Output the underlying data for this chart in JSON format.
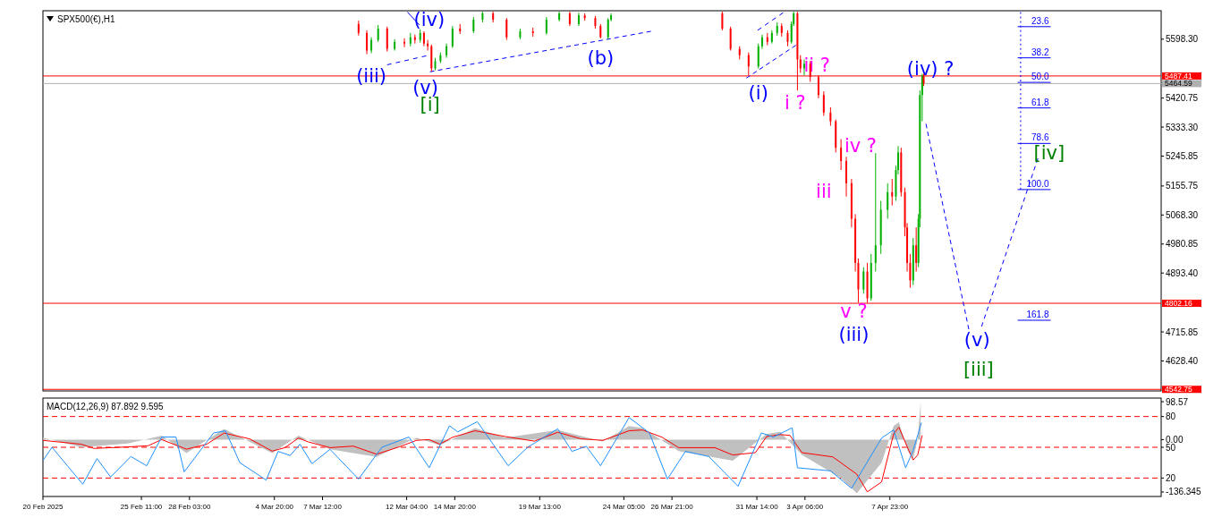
{
  "chart_data": [
    {
      "type": "candlestick",
      "title": "SPX500(€),H1",
      "tick_labels": "y",
      "xlim": [
        "2025-02-20T00:00",
        "2025-04-23T00:00"
      ],
      "ylim": [
        4538,
        5684
      ],
      "yticks": [
        {
          "value": 5598.3,
          "label": "5598.30"
        },
        {
          "value": 5420.75,
          "label": "5420.75"
        },
        {
          "value": 5333.3,
          "label": "5333.30"
        },
        {
          "value": 5245.85,
          "label": "5245.85"
        },
        {
          "value": 5155.75,
          "label": "5155.75"
        },
        {
          "value": 5068.3,
          "label": "5068.30"
        },
        {
          "value": 4980.85,
          "label": "4980.85"
        },
        {
          "value": 4893.4,
          "label": "4893.40"
        },
        {
          "value": 4715.85,
          "label": "4715.85"
        },
        {
          "value": 4628.4,
          "label": "4628.40"
        }
      ],
      "x": [
        "2025-03-09T12:00",
        "2025-03-09T23:00",
        "2025-03-10T05:00",
        "2025-03-10T14:00",
        "2025-03-11T02:00",
        "2025-03-11T12:00",
        "2025-03-12T01:00",
        "2025-03-12T09:00",
        "2025-03-12T15:00",
        "2025-03-12T22:00",
        "2025-03-13T03:00",
        "2025-03-13T08:00",
        "2025-03-13T13:00",
        "2025-03-13T18:00",
        "2025-03-14T01:00",
        "2025-03-14T09:00",
        "2025-03-14T17:00",
        "2025-03-15T03:00",
        "2025-03-15T21:00",
        "2025-03-16T09:00",
        "2025-03-16T23:00",
        "2025-03-17T17:00",
        "2025-03-18T11:00",
        "2025-03-19T04:00",
        "2025-03-19T22:00",
        "2025-03-20T15:00",
        "2025-03-21T05:00",
        "2025-03-21T17:00",
        "2025-03-22T01:00",
        "2025-03-22T15:00",
        "2025-03-22T22:00",
        "2025-03-23T08:00",
        "2025-03-23T12:00",
        "2025-03-29T16:00",
        "2025-03-30T03:00",
        "2025-03-30T15:00",
        "2025-03-31T03:00",
        "2025-03-31T16:00",
        "2025-03-31T21:00",
        "2025-04-01T04:00",
        "2025-04-01T10:00",
        "2025-04-01T17:00",
        "2025-04-01T23:00",
        "2025-04-02T07:00",
        "2025-04-02T12:00",
        "2025-04-02T15:00",
        "2025-04-02T20:00",
        "2025-04-03T00:00",
        "2025-04-03T05:00",
        "2025-04-03T13:00",
        "2025-04-04T00:00",
        "2025-04-04T07:00",
        "2025-04-04T16:00",
        "2025-04-04T23:00",
        "2025-04-05T06:00",
        "2025-04-05T13:00",
        "2025-04-05T20:00",
        "2025-04-06T01:00",
        "2025-04-06T05:00",
        "2025-04-06T12:00",
        "2025-04-06T17:00",
        "2025-04-06T22:00",
        "2025-04-07T04:00",
        "2025-04-07T11:00",
        "2025-04-07T20:00",
        "2025-04-08T02:00",
        "2025-04-08T07:00",
        "2025-04-08T10:00",
        "2025-04-08T14:00",
        "2025-04-08T19:00",
        "2025-04-08T22:00",
        "2025-04-09T02:00",
        "2025-04-09T06:00",
        "2025-04-09T10:00",
        "2025-04-09T13:00",
        "2025-04-09T15:00",
        "2025-04-09T18:00",
        "2025-04-09T20:00"
      ],
      "ohlc": [
        [
          5644,
          5654,
          5609,
          5617
        ],
        [
          5617,
          5625,
          5553,
          5564
        ],
        [
          5564,
          5604,
          5556,
          5596
        ],
        [
          5596,
          5641,
          5590,
          5630
        ],
        [
          5630,
          5636,
          5561,
          5569
        ],
        [
          5569,
          5598,
          5564,
          5590
        ],
        [
          5590,
          5601,
          5574,
          5585
        ],
        [
          5585,
          5617,
          5577,
          5604
        ],
        [
          5604,
          5612,
          5585,
          5596
        ],
        [
          5596,
          5628,
          5588,
          5617
        ],
        [
          5617,
          5622,
          5577,
          5585
        ],
        [
          5585,
          5596,
          5564,
          5577
        ],
        [
          5577,
          5582,
          5500,
          5510
        ],
        [
          5510,
          5542,
          5505,
          5532
        ],
        [
          5532,
          5558,
          5526,
          5550
        ],
        [
          5550,
          5585,
          5542,
          5577
        ],
        [
          5577,
          5638,
          5572,
          5630
        ],
        [
          5630,
          5644,
          5614,
          5622
        ],
        [
          5622,
          5665,
          5617,
          5657
        ],
        [
          5657,
          5681,
          5649,
          5676
        ],
        [
          5676,
          5681,
          5649,
          5657
        ],
        [
          5657,
          5662,
          5596,
          5604
        ],
        [
          5604,
          5630,
          5598,
          5622
        ],
        [
          5622,
          5633,
          5606,
          5617
        ],
        [
          5617,
          5665,
          5612,
          5657
        ],
        [
          5657,
          5681,
          5652,
          5676
        ],
        [
          5676,
          5681,
          5638,
          5644
        ],
        [
          5644,
          5678,
          5638,
          5670
        ],
        [
          5670,
          5676,
          5654,
          5662
        ],
        [
          5662,
          5668,
          5630,
          5638
        ],
        [
          5638,
          5644,
          5601,
          5604
        ],
        [
          5604,
          5662,
          5598,
          5657
        ],
        [
          5657,
          5676,
          5652,
          5670
        ],
        [
          5676,
          5681,
          5625,
          5630
        ],
        [
          5630,
          5636,
          5564,
          5569
        ],
        [
          5569,
          5577,
          5537,
          5550
        ],
        [
          5550,
          5558,
          5489,
          5516
        ],
        [
          5516,
          5585,
          5510,
          5577
        ],
        [
          5577,
          5612,
          5569,
          5604
        ],
        [
          5604,
          5617,
          5580,
          5590
        ],
        [
          5590,
          5625,
          5585,
          5617
        ],
        [
          5617,
          5649,
          5609,
          5638
        ],
        [
          5638,
          5646,
          5606,
          5617
        ],
        [
          5617,
          5625,
          5577,
          5590
        ],
        [
          5590,
          5652,
          5585,
          5644
        ],
        [
          5644,
          5681,
          5638,
          5676
        ],
        [
          5676,
          5681,
          5444,
          5537
        ],
        [
          5537,
          5550,
          5497,
          5510
        ],
        [
          5510,
          5537,
          5489,
          5524
        ],
        [
          5524,
          5532,
          5470,
          5484
        ],
        [
          5484,
          5489,
          5420,
          5430
        ],
        [
          5430,
          5441,
          5367,
          5377
        ],
        [
          5377,
          5393,
          5337,
          5351
        ],
        [
          5351,
          5356,
          5257,
          5271
        ],
        [
          5271,
          5297,
          5204,
          5231
        ],
        [
          5231,
          5244,
          5124,
          5164
        ],
        [
          5164,
          5177,
          5031,
          5057
        ],
        [
          5057,
          5071,
          4898,
          4924
        ],
        [
          4924,
          4937,
          4804,
          4844
        ],
        [
          4844,
          4911,
          4831,
          4898
        ],
        [
          4898,
          4924,
          4804,
          4817
        ],
        [
          4817,
          4951,
          4810,
          4924
        ],
        [
          4924,
          5255,
          4898,
          4977
        ],
        [
          4977,
          5111,
          4951,
          5084
        ],
        [
          5084,
          5164,
          5057,
          5137
        ],
        [
          5137,
          5177,
          5097,
          5124
        ],
        [
          5124,
          5217,
          5111,
          5204
        ],
        [
          5204,
          5276,
          5191,
          5257
        ],
        [
          5257,
          5271,
          5124,
          5137
        ],
        [
          5137,
          5151,
          5004,
          5031
        ],
        [
          5031,
          5044,
          4898,
          4924
        ],
        [
          4924,
          4951,
          4849,
          4871
        ],
        [
          4871,
          4999,
          4857,
          4977
        ],
        [
          4977,
          5031,
          4898,
          4924
        ],
        [
          4924,
          5071,
          4911,
          5057
        ],
        [
          5057,
          5444,
          5031,
          5430
        ],
        [
          5430,
          5494,
          5351,
          5489
        ],
        [
          5489,
          5494,
          5457,
          5465
        ]
      ],
      "series": [
        {
          "type": "line",
          "color": "#0000ff",
          "line_style": "dashed",
          "x": [
            "2025-03-11T02:00",
            "2025-03-13T06:00"
          ],
          "values": [
            5521,
            5548
          ]
        },
        {
          "type": "line",
          "color": "#0000ff",
          "line_style": "dashed",
          "x": [
            "2025-03-13T11:00",
            "2025-03-25T17:00"
          ],
          "values": [
            5500,
            5622
          ]
        },
        {
          "type": "line",
          "color": "#0000ff",
          "line_style": "solid",
          "x": [
            "2025-03-12T05:00",
            "2025-03-12T21:00"
          ],
          "values": [
            5680,
            5641
          ]
        },
        {
          "type": "line",
          "color": "#0000ff",
          "line_style": "dashed",
          "x": [
            "2025-03-31T00:00",
            "2025-04-02T18:00"
          ],
          "values": [
            5481,
            5580
          ]
        },
        {
          "type": "line",
          "color": "#0000ff",
          "line_style": "dashed",
          "x": [
            "2025-03-31T15:00",
            "2025-04-02T01:00"
          ],
          "values": [
            5625,
            5678
          ]
        },
        {
          "type": "line",
          "color": "#0000ff",
          "line_style": "dashed",
          "x": [
            "2025-04-09T23:00",
            "2025-04-12T08:00"
          ],
          "values": [
            5343,
            4724
          ]
        },
        {
          "type": "line",
          "color": "#0000ff",
          "line_style": "dashed",
          "x": [
            "2025-04-13T01:00",
            "2025-04-16T04:00"
          ],
          "values": [
            4732,
            5239
          ]
        },
        {
          "type": "line",
          "color": "#0000ff",
          "line_style": "dotted",
          "x": [
            "2025-04-15T05:00",
            "2025-04-15T05:00"
          ],
          "values": [
            5680,
            5145
          ]
        },
        {
          "type": "line",
          "name": "23.6",
          "color": "#0000ff",
          "line_style": "solid",
          "x": [
            "2025-04-15T01:00",
            "2025-04-16T21:00"
          ],
          "values": [
            5636,
            5636
          ]
        },
        {
          "type": "line",
          "name": "38.2",
          "color": "#0000ff",
          "line_style": "solid",
          "x": [
            "2025-04-15T01:00",
            "2025-04-16T21:00"
          ],
          "values": [
            5542,
            5542
          ]
        },
        {
          "type": "line",
          "name": "50.0",
          "color": "#0000ff",
          "line_style": "solid",
          "x": [
            "2025-04-15T01:00",
            "2025-04-16T21:00"
          ],
          "values": [
            5468,
            5468
          ]
        },
        {
          "type": "line",
          "name": "61.8",
          "color": "#0000ff",
          "line_style": "solid",
          "x": [
            "2025-04-15T01:00",
            "2025-04-16T21:00"
          ],
          "values": [
            5391,
            5391
          ]
        },
        {
          "type": "line",
          "name": "78.6",
          "color": "#0000ff",
          "line_style": "solid",
          "x": [
            "2025-04-15T01:00",
            "2025-04-16T21:00"
          ],
          "values": [
            5284,
            5284
          ]
        },
        {
          "type": "line",
          "name": "100.0",
          "color": "#0000ff",
          "line_style": "solid",
          "x": [
            "2025-04-15T01:00",
            "2025-04-16T21:00"
          ],
          "values": [
            5145,
            5145
          ]
        },
        {
          "type": "line",
          "name": "161.8",
          "color": "#0000ff",
          "line_style": "solid",
          "x": [
            "2025-04-15T01:00",
            "2025-04-16T21:00"
          ],
          "values": [
            4751,
            4751
          ]
        }
      ],
      "ref_lines": [
        {
          "axis": "y",
          "value": 5487.41,
          "label": "5487.41",
          "color": "#ff0000"
        },
        {
          "axis": "y",
          "value": 5464.59,
          "label": "5464.59",
          "color": "#b0b0b0"
        },
        {
          "axis": "y",
          "value": 4802.16,
          "label": "4802.16",
          "color": "#ff0000"
        },
        {
          "axis": "y",
          "value": 4542.75,
          "label": "4542.75",
          "color": "#ff0000"
        }
      ],
      "annotations": [
        "(iii)",
        "(iv)",
        "(v)",
        "[i]",
        "(b)",
        "(i)",
        "ii ?",
        "i ?",
        "iv ?",
        "iii",
        "v ?",
        "(iii)",
        "(iv) ?",
        "(v)",
        "[iii]",
        "[iv]"
      ]
    },
    {
      "type": "line",
      "title": "MACD(12,26,9) 87.892 9.595",
      "xlim": [
        "2025-02-20T00:00",
        "2025-04-23T00:00"
      ],
      "ylim": [
        -148,
        108
      ],
      "y2lim": [
        2,
        98
      ],
      "xticks": [
        {
          "value": "2025-02-20T00:00",
          "label": "20 Feb 2025"
        },
        {
          "value": "2025-02-25T11:00",
          "label": "25 Feb 11:00"
        },
        {
          "value": "2025-02-28T03:00",
          "label": "28 Feb 03:00"
        },
        {
          "value": "2025-03-04T20:00",
          "label": "4 Mar 20:00"
        },
        {
          "value": "2025-03-07T12:00",
          "label": "7 Mar 12:00"
        },
        {
          "value": "2025-03-12T04:00",
          "label": "12 Mar 04:00"
        },
        {
          "value": "2025-03-14T20:00",
          "label": "14 Mar 20:00"
        },
        {
          "value": "2025-03-19T13:00",
          "label": "19 Mar 13:00"
        },
        {
          "value": "2025-03-24T05:00",
          "label": "24 Mar 05:00"
        },
        {
          "value": "2025-03-26T21:00",
          "label": "26 Mar 21:00"
        },
        {
          "value": "2025-03-31T14:00",
          "label": "31 Mar 14:00"
        },
        {
          "value": "2025-04-03T06:00",
          "label": "3 Apr 06:00"
        },
        {
          "value": "2025-04-07T23:00",
          "label": "7 Apr 23:00"
        }
      ],
      "yticks": [
        98.57,
        {
          "value": 0,
          "label": "0.00"
        },
        -136.345
      ],
      "y2ticks": [
        80,
        50,
        20
      ],
      "ref_lines": [
        {
          "axis": "y2",
          "value": 80,
          "color": "#ff0000",
          "line_style": "dashed"
        },
        {
          "axis": "y2",
          "value": 50,
          "color": "#ff0000",
          "line_style": "dashed"
        },
        {
          "axis": "y2",
          "value": 20,
          "color": "#ff0000",
          "line_style": "dashed"
        }
      ],
      "series": [
        {
          "type": "area",
          "color": "#c0c0c0",
          "x": [
            "2025-02-20T00:00",
            "2025-02-22T03:00",
            "2025-02-24T17:00",
            "2025-02-26T14:00",
            "2025-02-27T23:00",
            "2025-03-02T01:00",
            "2025-03-04T17:00",
            "2025-03-06T04:00",
            "2025-03-07T22:00",
            "2025-03-10T12:00",
            "2025-03-12T17:00",
            "2025-03-14T00:00",
            "2025-03-15T23:00",
            "2025-03-17T15:00",
            "2025-03-20T13:00",
            "2025-03-23T01:00",
            "2025-03-24T12:00",
            "2025-03-25T06:00",
            "2025-03-27T06:00",
            "2025-03-30T06:00",
            "2025-04-01T03:00",
            "2025-04-01T21:00",
            "2025-04-03T02:00",
            "2025-04-05T06:00",
            "2025-04-06T03:00",
            "2025-04-07T12:00",
            "2025-04-08T04:00",
            "2025-04-08T11:00",
            "2025-04-08T23:00",
            "2025-04-09T06:00",
            "2025-04-09T12:00",
            "2025-04-09T16:00"
          ],
          "values": [
            5,
            -20,
            -10,
            10,
            -35,
            28,
            -35,
            10,
            -25,
            -45,
            5,
            -15,
            30,
            5,
            25,
            -5,
            35,
            30,
            -30,
            -55,
            15,
            20,
            -40,
            -100,
            -140,
            -60,
            35,
            45,
            -30,
            -50,
            0,
            98.57
          ]
        },
        {
          "type": "line",
          "color": "#ff0000",
          "x": [
            "2025-02-20T00:00",
            "2025-02-22T03:00",
            "2025-02-22T20:00",
            "2025-02-24T17:00",
            "2025-02-25T20:00",
            "2025-02-26T14:00",
            "2025-02-27T23:00",
            "2025-03-01T02:00",
            "2025-03-02T01:00",
            "2025-03-03T11:00",
            "2025-03-04T17:00",
            "2025-03-05T10:00",
            "2025-03-06T04:00",
            "2025-03-06T17:00",
            "2025-03-07T22:00",
            "2025-03-09T05:00",
            "2025-03-10T12:00",
            "2025-03-11T18:00",
            "2025-03-12T17:00",
            "2025-03-13T10:00",
            "2025-03-14T00:00",
            "2025-03-14T17:00",
            "2025-03-15T23:00",
            "2025-03-17T15:00",
            "2025-03-19T06:00",
            "2025-03-20T13:00",
            "2025-03-21T20:00",
            "2025-03-23T01:00",
            "2025-03-24T12:00",
            "2025-03-25T06:00",
            "2025-03-26T08:00",
            "2025-03-27T06:00",
            "2025-03-29T06:00",
            "2025-03-30T06:00",
            "2025-03-31T12:00",
            "2025-04-01T03:00",
            "2025-04-01T21:00",
            "2025-04-02T10:00",
            "2025-04-03T02:00",
            "2025-04-04T19:00",
            "2025-04-06T03:00",
            "2025-04-06T17:00",
            "2025-04-07T12:00",
            "2025-04-08T04:00",
            "2025-04-08T11:00",
            "2025-04-08T23:00",
            "2025-04-09T06:00",
            "2025-04-09T12:00",
            "2025-04-09T18:00"
          ],
          "values": [
            -2,
            -12,
            -23,
            -19,
            -16,
            0,
            -25,
            -12,
            17,
            2,
            -30,
            -21,
            4,
            -6,
            -21,
            -17,
            -38,
            -19,
            -2,
            0,
            -12,
            6,
            23,
            8,
            -4,
            19,
            2,
            -2,
            23,
            25,
            6,
            -21,
            -21,
            -40,
            -34,
            8,
            13,
            11,
            -34,
            -45,
            -90,
            -136,
            -110,
            15,
            32,
            -23,
            -53,
            -40,
            11
          ]
        },
        {
          "type": "line",
          "axis": "y2",
          "color": "#1e90ff",
          "x": [
            "2025-02-20T00:00",
            "2025-02-20T12:00",
            "2025-02-22T05:00",
            "2025-02-23T00:00",
            "2025-02-23T18:00",
            "2025-02-24T21:00",
            "2025-02-25T18:00",
            "2025-02-26T14:00",
            "2025-02-27T09:00",
            "2025-02-27T20:00",
            "2025-03-01T11:00",
            "2025-03-02T03:00",
            "2025-03-02T22:00",
            "2025-03-04T09:00",
            "2025-03-05T01:00",
            "2025-03-05T17:00",
            "2025-03-06T06:00",
            "2025-03-06T22:00",
            "2025-03-07T22:00",
            "2025-03-09T12:00",
            "2025-03-10T19:00",
            "2025-03-12T07:00",
            "2025-03-13T10:00",
            "2025-03-14T13:00",
            "2025-03-15T00:00",
            "2025-03-16T02:00",
            "2025-03-17T19:00",
            "2025-03-18T21:00",
            "2025-03-20T13:00",
            "2025-03-21T08:00",
            "2025-03-22T03:00",
            "2025-03-22T22:00",
            "2025-03-24T12:00",
            "2025-03-25T15:00",
            "2025-03-26T15:00",
            "2025-03-27T15:00",
            "2025-03-28T22:00",
            "2025-03-30T13:00",
            "2025-03-31T20:00",
            "2025-04-01T12:00",
            "2025-04-02T13:00",
            "2025-04-02T20:00",
            "2025-04-04T16:00",
            "2025-04-05T20:00",
            "2025-04-07T12:00",
            "2025-04-08T04:00",
            "2025-04-08T20:00",
            "2025-04-09T06:00",
            "2025-04-09T17:00"
          ],
          "values": [
            37,
            50,
            14,
            39,
            21,
            41,
            32,
            60,
            60,
            26,
            64,
            66,
            35,
            18,
            46,
            42,
            53,
            34,
            48,
            19,
            50,
            60,
            30,
            71,
            65,
            75,
            32,
            50,
            68,
            46,
            51,
            32,
            79,
            64,
            19,
            46,
            41,
            12,
            64,
            60,
            69,
            30,
            27,
            10,
            59,
            67,
            30,
            47,
            74
          ]
        }
      ]
    }
  ]
}
